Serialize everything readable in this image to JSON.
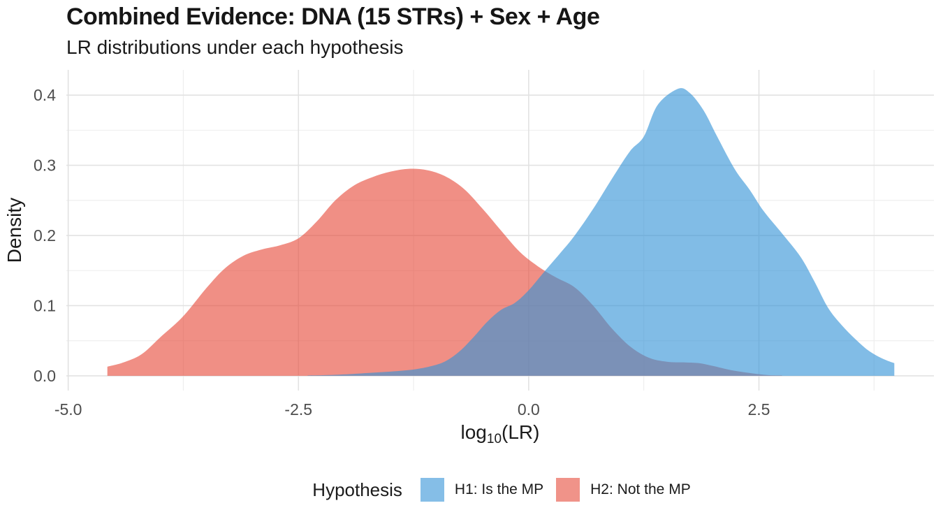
{
  "header": {
    "title": "Combined Evidence: DNA (15 STRs) + Sex + Age",
    "subtitle": "LR distributions under each hypothesis"
  },
  "legend": {
    "title": "Hypothesis",
    "items": [
      {
        "id": "h1",
        "label": "H1: Is the MP",
        "swatch": "#85BEE7"
      },
      {
        "id": "h2",
        "label": "H2: Not the MP",
        "swatch": "#F09389"
      }
    ]
  },
  "chart_data": {
    "type": "area",
    "subtype": "density",
    "title": "Combined Evidence: DNA (15 STRs) + Sex + Age",
    "subtitle": "LR distributions under each hypothesis",
    "xlabel": "log10(LR)",
    "xlabel_parts": {
      "prefix": "log",
      "sub": "10",
      "suffix": "(LR)"
    },
    "ylabel": "Density",
    "legend_position": "bottom",
    "grid": "on",
    "xlim": [
      -5.02,
      4.4
    ],
    "ylim": [
      -0.021,
      0.436
    ],
    "x_ticks": [
      {
        "value": -5.0,
        "label": "-5.0"
      },
      {
        "value": -2.5,
        "label": "-2.5"
      },
      {
        "value": 0.0,
        "label": "0.0"
      },
      {
        "value": 2.5,
        "label": "2.5"
      }
    ],
    "x_minor": [
      -3.75,
      -1.25,
      1.25,
      3.75
    ],
    "y_ticks": [
      {
        "value": 0.0,
        "label": "0.0"
      },
      {
        "value": 0.1,
        "label": "0.1"
      },
      {
        "value": 0.2,
        "label": "0.2"
      },
      {
        "value": 0.3,
        "label": "0.3"
      },
      {
        "value": 0.4,
        "label": "0.4"
      }
    ],
    "y_minor": [
      0.05,
      0.15,
      0.25,
      0.35
    ],
    "grid_colors": {
      "major": "#E2E2E2",
      "minor": "#EDEDED"
    },
    "text_colors": {
      "axis_text": "#4D4D4D",
      "axis_title": "#1b1b1b"
    },
    "series": [
      {
        "name": "H1: Is the MP",
        "hypothesis": "H1",
        "color": "#3493D7",
        "fill_opacity": 0.62,
        "draw_order": 2,
        "peak": {
          "x": 1.62,
          "density": 0.41
        },
        "points": [
          [
            -2.4,
            0.0005
          ],
          [
            -2.2,
            0.001
          ],
          [
            -2.0,
            0.002
          ],
          [
            -1.75,
            0.004
          ],
          [
            -1.5,
            0.006
          ],
          [
            -1.25,
            0.009
          ],
          [
            -1.05,
            0.014
          ],
          [
            -0.9,
            0.021
          ],
          [
            -0.75,
            0.035
          ],
          [
            -0.6,
            0.055
          ],
          [
            -0.45,
            0.077
          ],
          [
            -0.3,
            0.094
          ],
          [
            -0.15,
            0.104
          ],
          [
            0.0,
            0.122
          ],
          [
            0.18,
            0.15
          ],
          [
            0.35,
            0.176
          ],
          [
            0.5,
            0.2
          ],
          [
            0.7,
            0.238
          ],
          [
            0.9,
            0.28
          ],
          [
            1.1,
            0.32
          ],
          [
            1.25,
            0.341
          ],
          [
            1.4,
            0.386
          ],
          [
            1.62,
            0.409
          ],
          [
            1.75,
            0.403
          ],
          [
            1.9,
            0.378
          ],
          [
            2.05,
            0.34
          ],
          [
            2.24,
            0.294
          ],
          [
            2.4,
            0.265
          ],
          [
            2.55,
            0.235
          ],
          [
            2.75,
            0.203
          ],
          [
            2.95,
            0.17
          ],
          [
            3.1,
            0.135
          ],
          [
            3.25,
            0.097
          ],
          [
            3.4,
            0.072
          ],
          [
            3.55,
            0.052
          ],
          [
            3.7,
            0.035
          ],
          [
            3.85,
            0.024
          ],
          [
            3.97,
            0.018
          ]
        ]
      },
      {
        "name": "H2: Not the MP",
        "hypothesis": "H2",
        "color": "#E64B3A",
        "fill_opacity": 0.62,
        "draw_order": 1,
        "peak": {
          "x": -1.25,
          "density": 0.295
        },
        "points": [
          [
            -4.575,
            0.013
          ],
          [
            -4.4,
            0.019
          ],
          [
            -4.2,
            0.031
          ],
          [
            -4.0,
            0.055
          ],
          [
            -3.75,
            0.085
          ],
          [
            -3.5,
            0.125
          ],
          [
            -3.3,
            0.153
          ],
          [
            -3.1,
            0.171
          ],
          [
            -2.9,
            0.18
          ],
          [
            -2.7,
            0.186
          ],
          [
            -2.5,
            0.196
          ],
          [
            -2.3,
            0.22
          ],
          [
            -2.1,
            0.25
          ],
          [
            -1.9,
            0.271
          ],
          [
            -1.7,
            0.283
          ],
          [
            -1.5,
            0.291
          ],
          [
            -1.3,
            0.295
          ],
          [
            -1.1,
            0.293
          ],
          [
            -0.9,
            0.284
          ],
          [
            -0.7,
            0.266
          ],
          [
            -0.5,
            0.238
          ],
          [
            -0.3,
            0.207
          ],
          [
            -0.1,
            0.177
          ],
          [
            0.1,
            0.156
          ],
          [
            0.3,
            0.14
          ],
          [
            0.5,
            0.126
          ],
          [
            0.7,
            0.1
          ],
          [
            0.9,
            0.068
          ],
          [
            1.1,
            0.042
          ],
          [
            1.3,
            0.026
          ],
          [
            1.5,
            0.02
          ],
          [
            1.7,
            0.019
          ],
          [
            1.85,
            0.018
          ],
          [
            2.0,
            0.014
          ],
          [
            2.2,
            0.008
          ],
          [
            2.4,
            0.004
          ],
          [
            2.6,
            0.001
          ],
          [
            2.75,
            0.0005
          ]
        ]
      }
    ]
  }
}
